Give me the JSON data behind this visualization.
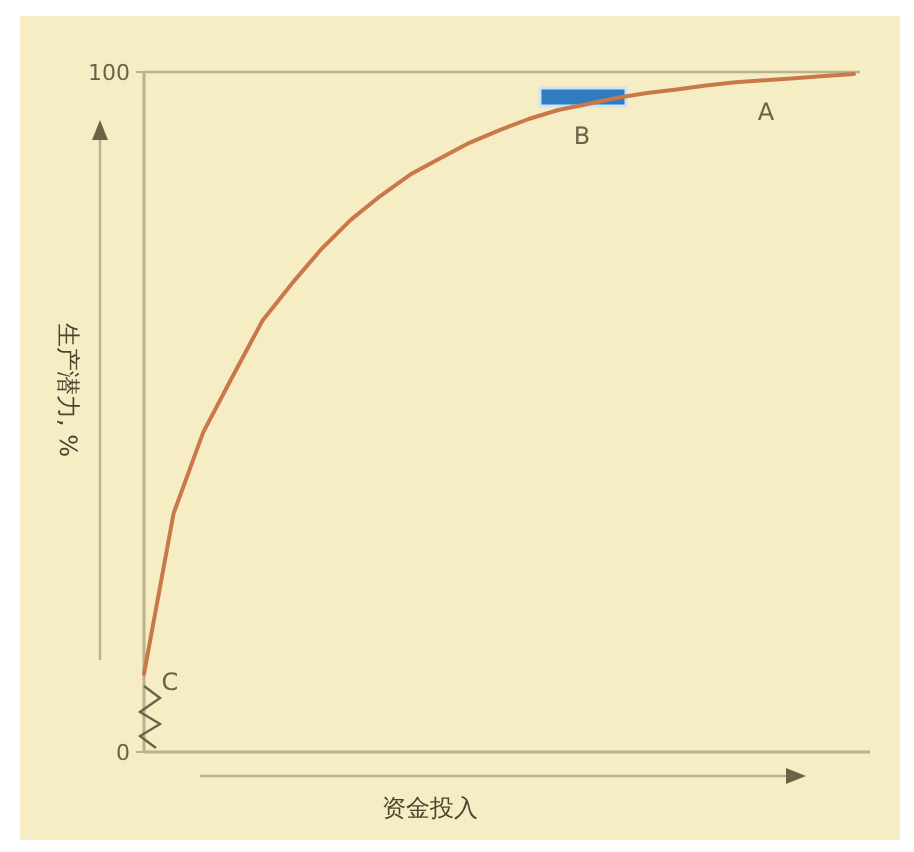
{
  "chart_data": {
    "type": "line",
    "xlabel": "资金投入",
    "ylabel": "生产潜力, %",
    "categories": [
      null,
      null,
      null,
      null,
      null,
      null,
      null,
      null,
      null,
      null,
      null,
      null,
      null,
      null,
      null,
      null,
      null,
      null,
      null,
      null,
      null,
      null,
      null,
      null,
      null
    ],
    "values": [
      11.5,
      35.1,
      47.0,
      55.3,
      63.4,
      68.9,
      74.0,
      78.3,
      81.8,
      84.9,
      87.3,
      89.6,
      91.4,
      93.1,
      94.4,
      95.3,
      96.2,
      96.9,
      97.4,
      98.0,
      98.5,
      98.8,
      99.1,
      99.4,
      99.7
    ],
    "color": "#c9784a",
    "ylim": [
      0,
      100
    ],
    "yticks": [
      0,
      100
    ],
    "tick_labels": "y",
    "ref_lines": [
      {
        "axis": "y",
        "value": 100,
        "color": "#b9b28c"
      }
    ],
    "annotations": [
      "A",
      "B",
      "C"
    ]
  }
}
